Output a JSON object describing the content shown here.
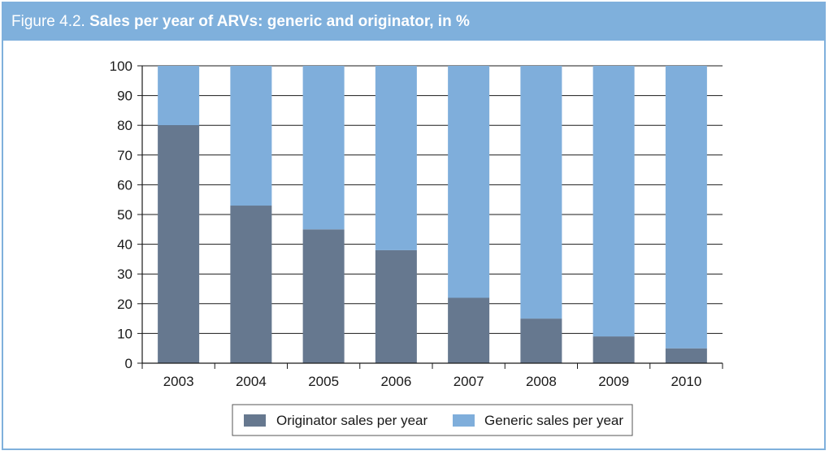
{
  "figure": {
    "label_prefix": "Figure 4.2.",
    "title": "Sales per year of ARVs: generic and originator, in %"
  },
  "colors": {
    "originator": "#66788f",
    "generic": "#7faedb",
    "header": "#7fb0dc"
  },
  "chart_data": {
    "type": "bar",
    "stacked": true,
    "categories": [
      "2003",
      "2004",
      "2005",
      "2006",
      "2007",
      "2008",
      "2009",
      "2010"
    ],
    "series": [
      {
        "name": "Originator sales per year",
        "values": [
          80,
          53,
          45,
          38,
          22,
          15,
          9,
          5
        ]
      },
      {
        "name": "Generic sales per year",
        "values": [
          20,
          47,
          55,
          62,
          78,
          85,
          91,
          95
        ]
      }
    ],
    "ylim": [
      0,
      100
    ],
    "yticks": [
      "0",
      "10",
      "20",
      "30",
      "40",
      "50",
      "60",
      "70",
      "80",
      "90",
      "100"
    ],
    "grid": true,
    "legend_position": "bottom"
  }
}
